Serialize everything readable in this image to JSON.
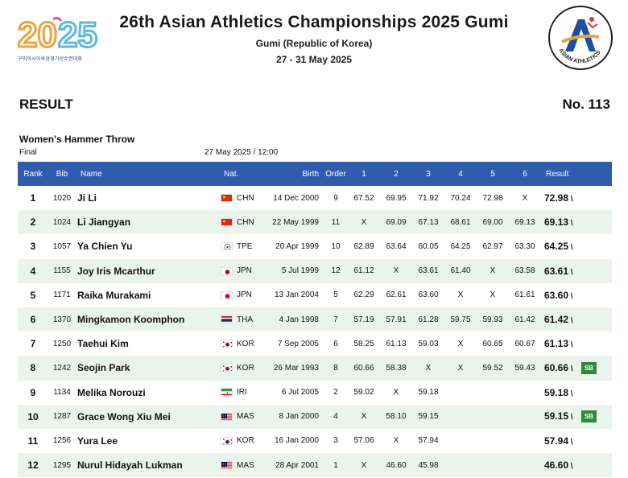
{
  "header": {
    "title": "26th Asian Athletics Championships 2025 Gumi",
    "venue": "Gumi (Republic of Korea)",
    "dates": "27 - 31 May 2025",
    "logo_left_text": "2025",
    "logo_left_caption": "구미아시아육상경기선수권대회",
    "logo_right_text": "ASIAN ATHLETICS"
  },
  "doc": {
    "result_label": "RESULT",
    "result_no": "No. 113",
    "event": "Women's Hammer Throw",
    "round": "Final",
    "datetime": "27 May 2025 / 12:00"
  },
  "table": {
    "columns": {
      "rank": "Rank",
      "bib": "Bib",
      "name": "Name",
      "nat": "Nat.",
      "birth": "Birth",
      "order": "Order",
      "a1": "1",
      "a2": "2",
      "a3": "3",
      "a4": "4",
      "a5": "5",
      "a6": "6",
      "result": "Result"
    },
    "rows": [
      {
        "rank": "1",
        "bib": "1020",
        "name": "Ji Li",
        "nat": "CHN",
        "flag": "chn",
        "birth": "14 Dec 2000",
        "order": "9",
        "a": [
          "67.52",
          "69.95",
          "71.92",
          "70.24",
          "72.98",
          "X"
        ],
        "result": "72.98",
        "badge": ""
      },
      {
        "rank": "2",
        "bib": "1024",
        "name": "Li Jiangyan",
        "nat": "CHN",
        "flag": "chn",
        "birth": "22 May 1999",
        "order": "11",
        "a": [
          "X",
          "69.09",
          "67.13",
          "68.61",
          "69.00",
          "69.13"
        ],
        "result": "69.13",
        "badge": ""
      },
      {
        "rank": "3",
        "bib": "1057",
        "name": "Ya Chien Yu",
        "nat": "TPE",
        "flag": "tpe",
        "birth": "20 Apr 1999",
        "order": "10",
        "a": [
          "62.89",
          "63.64",
          "60.05",
          "64.25",
          "62.97",
          "63.30"
        ],
        "result": "64.25",
        "badge": ""
      },
      {
        "rank": "4",
        "bib": "1155",
        "name": "Joy Iris Mcarthur",
        "nat": "JPN",
        "flag": "jpn",
        "birth": "5 Jul 1999",
        "order": "12",
        "a": [
          "61.12",
          "X",
          "63.61",
          "61.40",
          "X",
          "63.58"
        ],
        "result": "63.61",
        "badge": ""
      },
      {
        "rank": "5",
        "bib": "1171",
        "name": "Raika Murakami",
        "nat": "JPN",
        "flag": "jpn",
        "birth": "13 Jan 2004",
        "order": "5",
        "a": [
          "62.29",
          "62.61",
          "63.60",
          "X",
          "X",
          "61.61"
        ],
        "result": "63.60",
        "badge": ""
      },
      {
        "rank": "6",
        "bib": "1370",
        "name": "Mingkamon Koomphon",
        "nat": "THA",
        "flag": "tha",
        "birth": "4 Jan 1998",
        "order": "7",
        "a": [
          "57.19",
          "57.91",
          "61.28",
          "59.75",
          "59.93",
          "61.42"
        ],
        "result": "61.42",
        "badge": ""
      },
      {
        "rank": "7",
        "bib": "1250",
        "name": "Taehui Kim",
        "nat": "KOR",
        "flag": "kor",
        "birth": "7 Sep 2005",
        "order": "6",
        "a": [
          "58.25",
          "61.13",
          "59.03",
          "X",
          "60.65",
          "60.67"
        ],
        "result": "61.13",
        "badge": ""
      },
      {
        "rank": "8",
        "bib": "1242",
        "name": "Seojin Park",
        "nat": "KOR",
        "flag": "kor",
        "birth": "26 Mar 1993",
        "order": "8",
        "a": [
          "60.66",
          "58.38",
          "X",
          "X",
          "59.52",
          "59.43"
        ],
        "result": "60.66",
        "badge": "SB"
      },
      {
        "rank": "9",
        "bib": "1134",
        "name": "Melika Norouzi",
        "nat": "IRI",
        "flag": "iri",
        "birth": "6 Jul 2005",
        "order": "2",
        "a": [
          "59.02",
          "X",
          "59.18",
          "",
          "",
          ""
        ],
        "result": "59.18",
        "badge": ""
      },
      {
        "rank": "10",
        "bib": "1287",
        "name": "Grace Wong Xiu Mei",
        "nat": "MAS",
        "flag": "mas",
        "birth": "8 Jan 2000",
        "order": "4",
        "a": [
          "X",
          "58.10",
          "59.15",
          "",
          "",
          ""
        ],
        "result": "59.15",
        "badge": "SB"
      },
      {
        "rank": "11",
        "bib": "1256",
        "name": "Yura Lee",
        "nat": "KOR",
        "flag": "kor",
        "birth": "16 Jan 2000",
        "order": "3",
        "a": [
          "57.06",
          "X",
          "57.94",
          "",
          "",
          ""
        ],
        "result": "57.94",
        "badge": ""
      },
      {
        "rank": "12",
        "bib": "1295",
        "name": "Nurul Hidayah Lukman",
        "nat": "MAS",
        "flag": "mas",
        "birth": "28 Apr 2001",
        "order": "1",
        "a": [
          "X",
          "46.60",
          "45.98",
          "",
          "",
          ""
        ],
        "result": "46.60",
        "badge": ""
      }
    ]
  },
  "colors": {
    "header_bar": "#2f5cad",
    "row_stripe": "#eaf3ec",
    "sb_badge": "#2e8b3e"
  }
}
